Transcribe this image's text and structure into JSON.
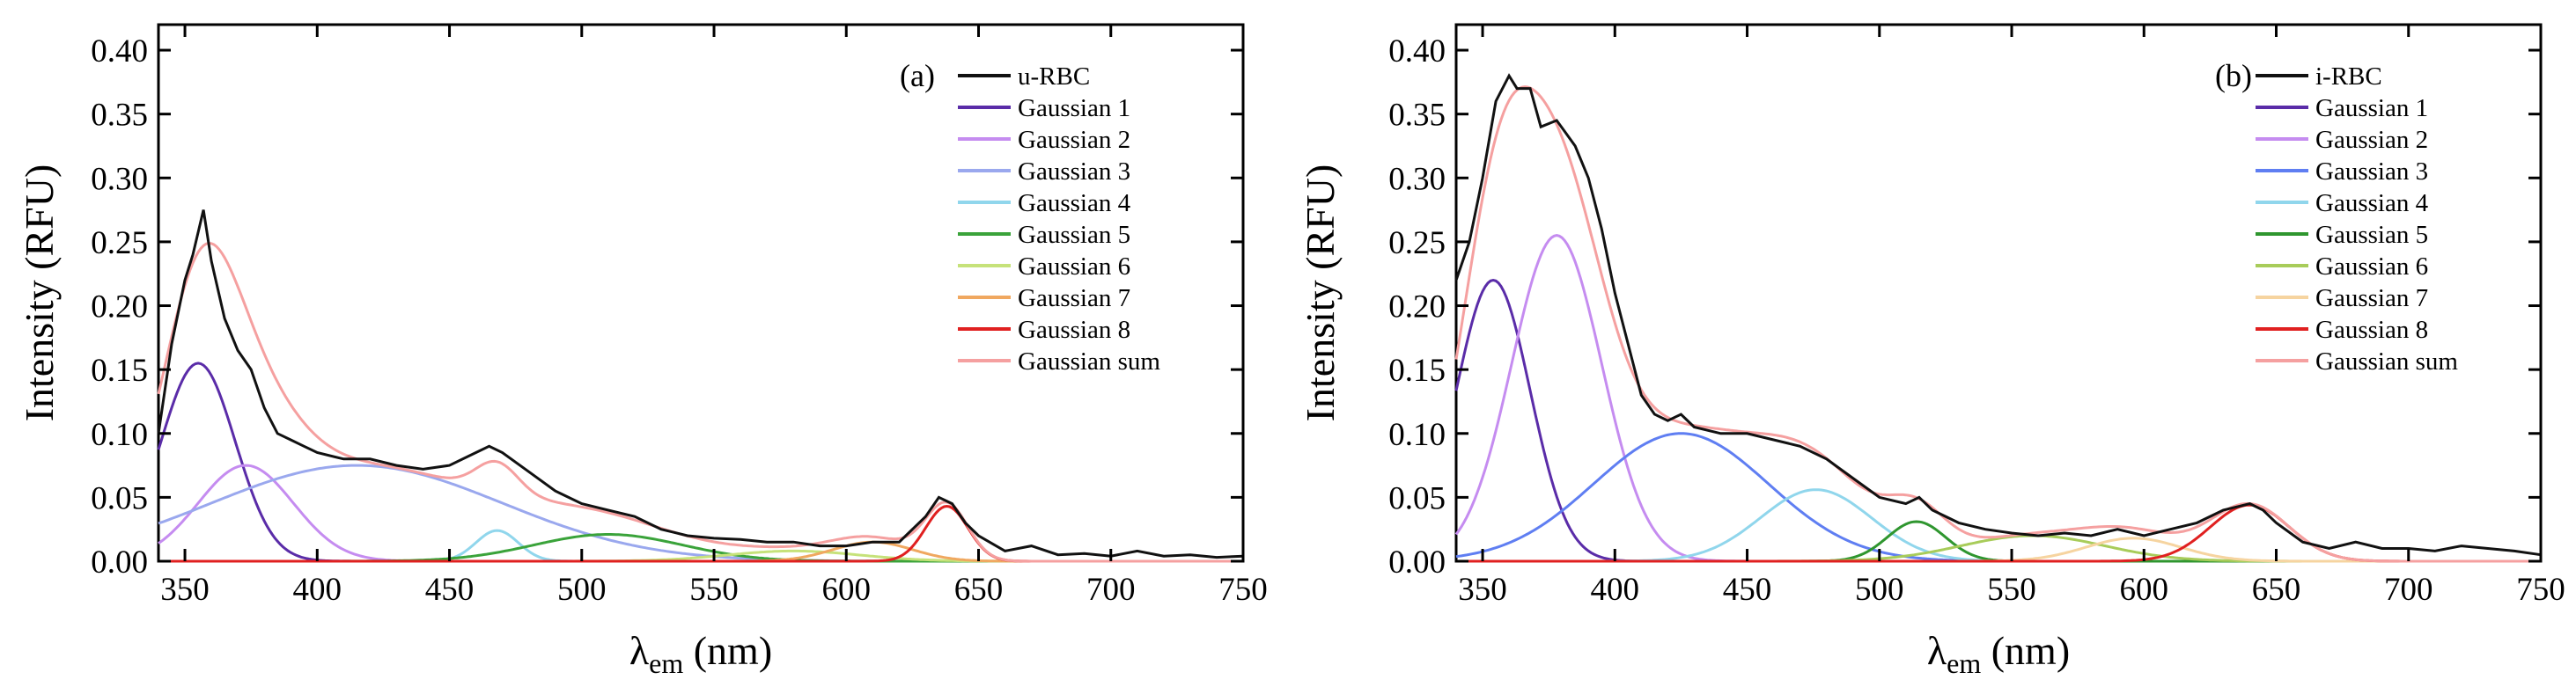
{
  "chart_data": [
    {
      "type": "line",
      "panel_label": "(a)",
      "xlabel": "λem (nm)",
      "xlabel_main": "λ",
      "xlabel_sub": "em",
      "xlabel_rest": " (nm)",
      "ylabel": "Intensity (RFU)",
      "xlim": [
        340,
        750
      ],
      "ylim": [
        0,
        0.42
      ],
      "xticks": [
        350,
        400,
        450,
        500,
        550,
        600,
        650,
        700,
        750
      ],
      "yticks": [
        "0.00",
        "0.05",
        "0.10",
        "0.15",
        "0.20",
        "0.25",
        "0.30",
        "0.35",
        "0.40"
      ],
      "legend_position": "top-right",
      "data_series_name": "u-RBC",
      "data_series_color": "#111111",
      "data_points": [
        [
          340,
          0.1
        ],
        [
          345,
          0.17
        ],
        [
          350,
          0.22
        ],
        [
          353,
          0.24
        ],
        [
          357,
          0.275
        ],
        [
          360,
          0.235
        ],
        [
          365,
          0.19
        ],
        [
          370,
          0.165
        ],
        [
          375,
          0.15
        ],
        [
          380,
          0.12
        ],
        [
          385,
          0.1
        ],
        [
          390,
          0.095
        ],
        [
          395,
          0.09
        ],
        [
          400,
          0.085
        ],
        [
          410,
          0.08
        ],
        [
          420,
          0.08
        ],
        [
          430,
          0.075
        ],
        [
          440,
          0.072
        ],
        [
          450,
          0.075
        ],
        [
          460,
          0.085
        ],
        [
          465,
          0.09
        ],
        [
          470,
          0.085
        ],
        [
          480,
          0.07
        ],
        [
          490,
          0.055
        ],
        [
          500,
          0.045
        ],
        [
          510,
          0.04
        ],
        [
          520,
          0.035
        ],
        [
          530,
          0.025
        ],
        [
          540,
          0.02
        ],
        [
          550,
          0.018
        ],
        [
          560,
          0.017
        ],
        [
          570,
          0.015
        ],
        [
          580,
          0.015
        ],
        [
          590,
          0.012
        ],
        [
          600,
          0.012
        ],
        [
          610,
          0.015
        ],
        [
          620,
          0.015
        ],
        [
          630,
          0.035
        ],
        [
          635,
          0.05
        ],
        [
          640,
          0.045
        ],
        [
          645,
          0.03
        ],
        [
          650,
          0.02
        ],
        [
          660,
          0.008
        ],
        [
          670,
          0.012
        ],
        [
          680,
          0.005
        ],
        [
          690,
          0.006
        ],
        [
          700,
          0.004
        ],
        [
          710,
          0.008
        ],
        [
          720,
          0.004
        ],
        [
          730,
          0.005
        ],
        [
          740,
          0.003
        ],
        [
          750,
          0.004
        ]
      ],
      "gaussians": [
        {
          "name": "Gaussian 1",
          "center": 355,
          "amplitude": 0.155,
          "sigma": 14,
          "color": "#5a2ca8"
        },
        {
          "name": "Gaussian 2",
          "center": 373,
          "amplitude": 0.075,
          "sigma": 18,
          "color": "#c58cf0"
        },
        {
          "name": "Gaussian 3",
          "center": 415,
          "amplitude": 0.075,
          "sigma": 55,
          "color": "#9aa8ee"
        },
        {
          "name": "Gaussian 4",
          "center": 468,
          "amplitude": 0.024,
          "sigma": 8,
          "color": "#90d6ec"
        },
        {
          "name": "Gaussian 5",
          "center": 510,
          "amplitude": 0.021,
          "sigma": 28,
          "color": "#3aa33a"
        },
        {
          "name": "Gaussian 6",
          "center": 580,
          "amplitude": 0.008,
          "sigma": 25,
          "color": "#c6e27a"
        },
        {
          "name": "Gaussian 7",
          "center": 610,
          "amplitude": 0.015,
          "sigma": 15,
          "color": "#f0a860"
        },
        {
          "name": "Gaussian 8",
          "center": 638,
          "amplitude": 0.043,
          "sigma": 8,
          "color": "#e02020"
        }
      ],
      "gaussian_sum_name": "Gaussian sum",
      "gaussian_sum_color": "#f5a0a0"
    },
    {
      "type": "line",
      "panel_label": "(b)",
      "xlabel": "λem (nm)",
      "xlabel_main": "λ",
      "xlabel_sub": "em",
      "xlabel_rest": " (nm)",
      "ylabel": "Intensity (RFU)",
      "xlim": [
        340,
        750
      ],
      "ylim": [
        0,
        0.42
      ],
      "xticks": [
        350,
        400,
        450,
        500,
        550,
        600,
        650,
        700,
        750
      ],
      "yticks": [
        "0.00",
        "0.05",
        "0.10",
        "0.15",
        "0.20",
        "0.25",
        "0.30",
        "0.35",
        "0.40"
      ],
      "legend_position": "top-right",
      "data_series_name": "i-RBC",
      "data_series_color": "#111111",
      "data_points": [
        [
          340,
          0.22
        ],
        [
          345,
          0.25
        ],
        [
          350,
          0.3
        ],
        [
          355,
          0.36
        ],
        [
          360,
          0.38
        ],
        [
          363,
          0.37
        ],
        [
          368,
          0.37
        ],
        [
          372,
          0.34
        ],
        [
          378,
          0.345
        ],
        [
          385,
          0.325
        ],
        [
          390,
          0.3
        ],
        [
          395,
          0.26
        ],
        [
          400,
          0.21
        ],
        [
          405,
          0.17
        ],
        [
          410,
          0.13
        ],
        [
          415,
          0.115
        ],
        [
          420,
          0.11
        ],
        [
          425,
          0.115
        ],
        [
          430,
          0.105
        ],
        [
          440,
          0.1
        ],
        [
          450,
          0.1
        ],
        [
          460,
          0.095
        ],
        [
          470,
          0.09
        ],
        [
          480,
          0.08
        ],
        [
          490,
          0.065
        ],
        [
          500,
          0.05
        ],
        [
          510,
          0.045
        ],
        [
          515,
          0.05
        ],
        [
          520,
          0.04
        ],
        [
          530,
          0.03
        ],
        [
          540,
          0.025
        ],
        [
          550,
          0.022
        ],
        [
          560,
          0.02
        ],
        [
          570,
          0.022
        ],
        [
          580,
          0.02
        ],
        [
          590,
          0.025
        ],
        [
          600,
          0.02
        ],
        [
          610,
          0.025
        ],
        [
          620,
          0.03
        ],
        [
          630,
          0.04
        ],
        [
          640,
          0.045
        ],
        [
          645,
          0.04
        ],
        [
          650,
          0.03
        ],
        [
          660,
          0.015
        ],
        [
          670,
          0.01
        ],
        [
          680,
          0.015
        ],
        [
          690,
          0.01
        ],
        [
          700,
          0.01
        ],
        [
          710,
          0.008
        ],
        [
          720,
          0.012
        ],
        [
          730,
          0.01
        ],
        [
          740,
          0.008
        ],
        [
          750,
          0.005
        ]
      ],
      "gaussians": [
        {
          "name": "Gaussian 1",
          "center": 354,
          "amplitude": 0.22,
          "sigma": 14,
          "color": "#5a2ca8"
        },
        {
          "name": "Gaussian 2",
          "center": 378,
          "amplitude": 0.255,
          "sigma": 17,
          "color": "#c58cf0"
        },
        {
          "name": "Gaussian 3",
          "center": 425,
          "amplitude": 0.1,
          "sigma": 33,
          "color": "#5f7ef2"
        },
        {
          "name": "Gaussian 4",
          "center": 476,
          "amplitude": 0.056,
          "sigma": 21,
          "color": "#90d6ec"
        },
        {
          "name": "Gaussian 5",
          "center": 514,
          "amplitude": 0.031,
          "sigma": 11,
          "color": "#2f962f"
        },
        {
          "name": "Gaussian 6",
          "center": 558,
          "amplitude": 0.02,
          "sigma": 27,
          "color": "#a8cc5a"
        },
        {
          "name": "Gaussian 7",
          "center": 596,
          "amplitude": 0.018,
          "sigma": 18,
          "color": "#f6d4a0"
        },
        {
          "name": "Gaussian 8",
          "center": 640,
          "amplitude": 0.044,
          "sigma": 15,
          "color": "#e02020"
        }
      ],
      "gaussian_sum_name": "Gaussian sum",
      "gaussian_sum_color": "#f5a0a0"
    }
  ]
}
